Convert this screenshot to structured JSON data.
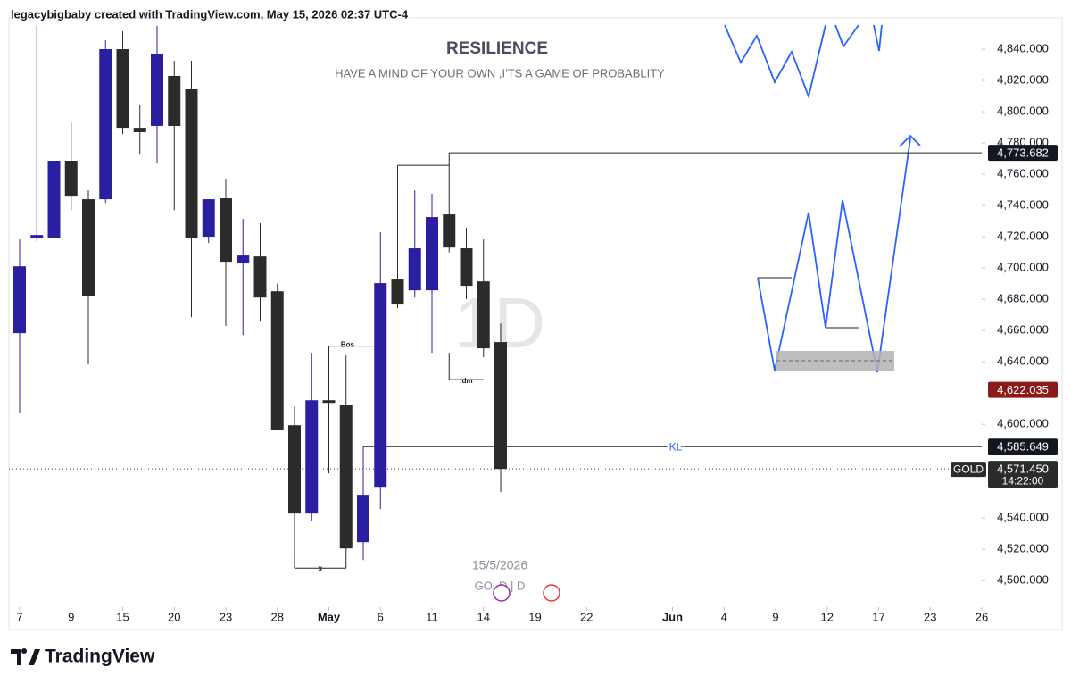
{
  "header": "legacybigbaby created with TradingView.com, May 15, 2026 02:37 UTC-4",
  "footer": "TradingView",
  "chart_data": {
    "type": "candlestick",
    "title": "RESILIENCE",
    "subtitle": "HAVE A MIND OF YOUR OWN ,I'TS A GAME OF PROBABLITY",
    "watermark": "1D",
    "date_label": "15/5/2026",
    "symbol_label": "GOLD | D",
    "up_color": "#2a1fa0",
    "down_color": "#2b2b2b",
    "ylim": [
      4483,
      4860
    ],
    "yticks": [
      {
        "value": 4500,
        "label": "4,500.000"
      },
      {
        "value": 4520,
        "label": "4,520.000"
      },
      {
        "value": 4540,
        "label": "4,540.000"
      },
      {
        "value": 4600,
        "label": "4,600.000"
      },
      {
        "value": 4640,
        "label": "4,640.000"
      },
      {
        "value": 4660,
        "label": "4,660.000"
      },
      {
        "value": 4680,
        "label": "4,680.000"
      },
      {
        "value": 4700,
        "label": "4,700.000"
      },
      {
        "value": 4720,
        "label": "4,720.000"
      },
      {
        "value": 4740,
        "label": "4,740.000"
      },
      {
        "value": 4760,
        "label": "4,760.000"
      },
      {
        "value": 4780,
        "label": "4,780.000"
      },
      {
        "value": 4800,
        "label": "4,800.000"
      },
      {
        "value": 4820,
        "label": "4,820.000"
      },
      {
        "value": 4840,
        "label": "4,840.000"
      }
    ],
    "xticks": [
      {
        "value": 0,
        "label": "7"
      },
      {
        "value": 3,
        "label": "9"
      },
      {
        "value": 6,
        "label": "15"
      },
      {
        "value": 9,
        "label": "20"
      },
      {
        "value": 12,
        "label": "23"
      },
      {
        "value": 15,
        "label": "28"
      },
      {
        "value": 18,
        "label": "May"
      },
      {
        "value": 21,
        "label": "6"
      },
      {
        "value": 24,
        "label": "11"
      },
      {
        "value": 27,
        "label": "14"
      },
      {
        "value": 30,
        "label": "19"
      },
      {
        "value": 33,
        "label": "22"
      },
      {
        "value": 38,
        "label": "Jun"
      },
      {
        "value": 41,
        "label": "4"
      },
      {
        "value": 44,
        "label": "9"
      },
      {
        "value": 47,
        "label": "12"
      },
      {
        "value": 50,
        "label": "17"
      },
      {
        "value": 53,
        "label": "23"
      },
      {
        "value": 56,
        "label": "26"
      }
    ],
    "candles": [
      {
        "o": 4658.3,
        "h": 4718.3,
        "l": 4607.4,
        "c": 4701.1
      },
      {
        "o": 4718.9,
        "h": 4855,
        "l": 4717,
        "c": 4721.1
      },
      {
        "o": 4718.9,
        "h": 4800,
        "l": 4698.9,
        "c": 4768.6
      },
      {
        "o": 4768.6,
        "h": 4793,
        "l": 4737,
        "c": 4745.7
      },
      {
        "o": 4744,
        "h": 4749.7,
        "l": 4638.3,
        "c": 4682.3
      },
      {
        "o": 4744,
        "h": 4845.7,
        "l": 4741.7,
        "c": 4840
      },
      {
        "o": 4840,
        "h": 4851.4,
        "l": 4785.7,
        "c": 4789.7
      },
      {
        "o": 4789.7,
        "h": 4804,
        "l": 4772.6,
        "c": 4786.9
      },
      {
        "o": 4790.9,
        "h": 4855,
        "l": 4767.4,
        "c": 4837.1
      },
      {
        "o": 4822.9,
        "h": 4832.6,
        "l": 4737,
        "c": 4790.9
      },
      {
        "o": 4814.3,
        "h": 4832.6,
        "l": 4668.6,
        "c": 4718.9
      },
      {
        "o": 4720,
        "h": 4744,
        "l": 4716,
        "c": 4744
      },
      {
        "o": 4744.6,
        "h": 4757,
        "l": 4662.9,
        "c": 4704
      },
      {
        "o": 4702.9,
        "h": 4731.4,
        "l": 4657.1,
        "c": 4708
      },
      {
        "o": 4707.4,
        "h": 4728.6,
        "l": 4665.7,
        "c": 4681.1
      },
      {
        "o": 4685.1,
        "h": 4690,
        "l": 4596.6,
        "c": 4596.6
      },
      {
        "o": 4599.4,
        "h": 4611.4,
        "l": 4520,
        "c": 4542.9
      },
      {
        "o": 4542.9,
        "h": 4645.7,
        "l": 4538.3,
        "c": 4615.4
      },
      {
        "o": 4615.4,
        "h": 4648.6,
        "l": 4568.6,
        "c": 4613.7
      },
      {
        "o": 4612.6,
        "h": 4644,
        "l": 4513.1,
        "c": 4520.6
      },
      {
        "o": 4524.6,
        "h": 4585.7,
        "l": 4513.1,
        "c": 4554.9
      },
      {
        "o": 4560,
        "h": 4722.9,
        "l": 4545.7,
        "c": 4690.3
      },
      {
        "o": 4692.6,
        "h": 4765.7,
        "l": 4674.3,
        "c": 4676.6
      },
      {
        "o": 4685.7,
        "h": 4749.7,
        "l": 4681.1,
        "c": 4712.6
      },
      {
        "o": 4685.7,
        "h": 4747.4,
        "l": 4645.7,
        "c": 4732.6
      },
      {
        "o": 4734.3,
        "h": 4765.7,
        "l": 4710,
        "c": 4713.1
      },
      {
        "o": 4712.6,
        "h": 4725.7,
        "l": 4680,
        "c": 4688.6
      },
      {
        "o": 4691.4,
        "h": 4718.3,
        "l": 4642.9,
        "c": 4648.6
      },
      {
        "o": 4652.6,
        "h": 4664.6,
        "l": 4556.6,
        "c": 4571.45
      }
    ],
    "price_labels": [
      {
        "value": 4773.682,
        "label": "4,773.682",
        "color": "#131722"
      },
      {
        "value": 4622.035,
        "label": "4,622.035",
        "color": "#8b1a1a"
      },
      {
        "value": 4585.649,
        "label": "4,585.649",
        "color": "#131722"
      }
    ],
    "last_price": {
      "value": 4571.45,
      "label": "4,571.450",
      "symbol": "GOLD",
      "countdown": "14:22:00"
    },
    "levels": [
      {
        "text": "KL",
        "value": 4585.649
      },
      {
        "text": "Bos",
        "value": 4650
      },
      {
        "text": "Idm",
        "value": 4628.6
      },
      {
        "text": "x",
        "value": 4508
      }
    ]
  }
}
